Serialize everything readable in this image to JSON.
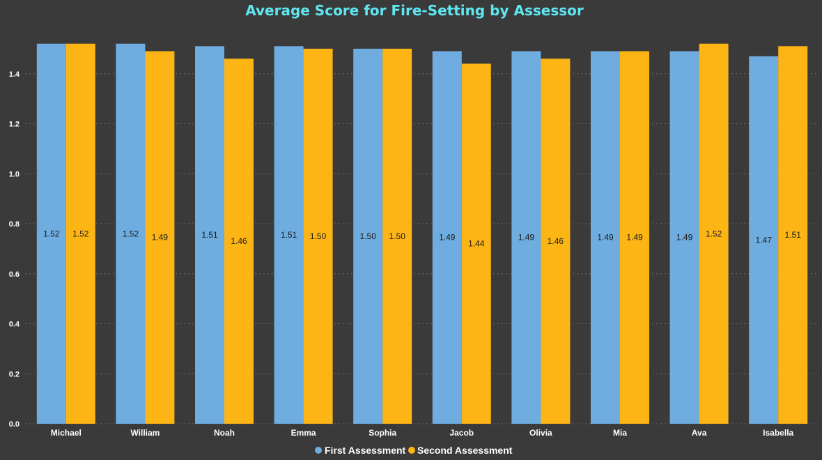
{
  "chart_data": {
    "type": "bar",
    "title": "Average Score for Fire-Setting by Assessor",
    "xlabel": "",
    "ylabel": "",
    "ylim": [
      0,
      1.6
    ],
    "yticks": [
      "0.0",
      "0.2",
      "0.4",
      "0.6",
      "0.8",
      "1.0",
      "1.2",
      "1.4"
    ],
    "grid": true,
    "legend_position": "bottom",
    "categories": [
      "Michael",
      "William",
      "Noah",
      "Emma",
      "Sophia",
      "Jacob",
      "Olivia",
      "Mia",
      "Ava",
      "Isabella"
    ],
    "series": [
      {
        "name": "First Assessment",
        "color": "#6fade0",
        "values": [
          1.52,
          1.52,
          1.51,
          1.51,
          1.5,
          1.49,
          1.49,
          1.49,
          1.49,
          1.47
        ],
        "labels": [
          "1.52",
          "1.52",
          "1.51",
          "1.51",
          "1.50",
          "1.49",
          "1.49",
          "1.49",
          "1.49",
          "1.47"
        ]
      },
      {
        "name": "Second Assessment",
        "color": "#fdb515",
        "values": [
          1.52,
          1.49,
          1.46,
          1.5,
          1.5,
          1.44,
          1.46,
          1.49,
          1.52,
          1.51
        ],
        "labels": [
          "1.52",
          "1.49",
          "1.46",
          "1.50",
          "1.50",
          "1.44",
          "1.46",
          "1.49",
          "1.52",
          "1.51"
        ]
      }
    ]
  }
}
